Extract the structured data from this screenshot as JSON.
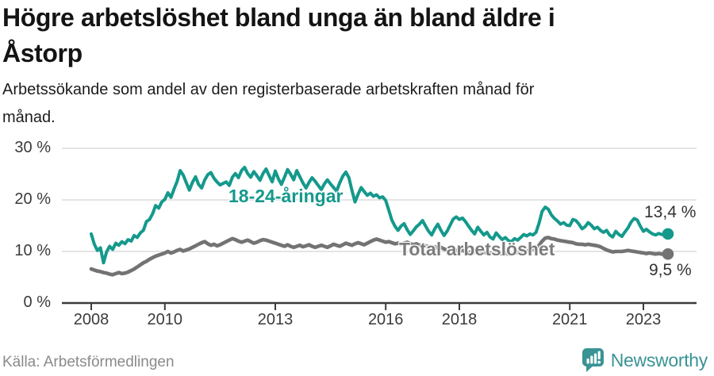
{
  "header": {
    "title_line1": "Högre arbetslöshet bland unga än bland äldre i",
    "title_line2": "Åstorp",
    "subtitle_line1": "Arbetssökande som andel av den registerbaserade arbetskraften månad för",
    "subtitle_line2": "månad."
  },
  "footer": {
    "source": "Källa: Arbetsförmedlingen",
    "brand": "Newsworthy"
  },
  "colors": {
    "youth_line": "#14998c",
    "total_line": "#737373",
    "total_label": "#7c7c7c",
    "grid": "#dcdcdc",
    "axis": "#3b3b3b",
    "text": "#1a1a1a",
    "source_text": "#8a8a8a",
    "brand_teal": "#3a9394"
  },
  "chart_data": {
    "type": "line",
    "title": "Högre arbetslöshet bland unga än bland äldre i Åstorp",
    "subtitle": "Arbetssökande som andel av den registerbaserade arbetskraften månad för månad.",
    "x_start": "2008-01",
    "x_interval": "monthly",
    "x_ticks": [
      "2008",
      "2010",
      "2013",
      "2016",
      "2018",
      "2021",
      "2023"
    ],
    "y_ticks": [
      {
        "value": 0,
        "label": "0 %"
      },
      {
        "value": 10,
        "label": "10 %"
      },
      {
        "value": 20,
        "label": "20 %"
      },
      {
        "value": 30,
        "label": "30 %"
      }
    ],
    "ylim": [
      0,
      31
    ],
    "grid": true,
    "series": [
      {
        "name": "18-24-åringar",
        "color": "#14998c",
        "line_width": 4,
        "end_label": "13,4 %",
        "end_value": 13.4,
        "values": [
          13.4,
          11.4,
          10.2,
          10.7,
          7.8,
          9.9,
          11.0,
          10.4,
          11.6,
          11.2,
          11.9,
          11.5,
          12.3,
          12.0,
          13.1,
          12.7,
          13.6,
          14.1,
          15.8,
          16.2,
          17.3,
          18.9,
          18.4,
          19.6,
          20.1,
          21.4,
          20.5,
          22.1,
          23.6,
          25.7,
          24.8,
          23.3,
          21.9,
          23.4,
          24.5,
          23.0,
          22.3,
          23.9,
          24.9,
          25.3,
          24.2,
          23.5,
          22.9,
          23.2,
          23.5,
          22.8,
          24.4,
          25.1,
          24.3,
          25.7,
          26.3,
          25.1,
          24.4,
          25.5,
          24.7,
          23.8,
          25.1,
          26.0,
          24.7,
          23.5,
          25.6,
          24.1,
          23.0,
          24.4,
          25.9,
          25.0,
          23.9,
          25.7,
          24.5,
          23.3,
          22.3,
          23.4,
          24.3,
          23.6,
          22.8,
          22.0,
          23.1,
          23.9,
          23.1,
          22.4,
          21.7,
          23.3,
          24.6,
          25.4,
          24.3,
          21.8,
          19.6,
          21.1,
          22.4,
          21.6,
          20.9,
          21.3,
          20.7,
          21.0,
          20.4,
          20.6,
          19.9,
          18.0,
          16.1,
          14.9,
          14.1,
          14.9,
          15.4,
          14.2,
          13.3,
          14.0,
          14.8,
          15.3,
          16.0,
          14.9,
          13.9,
          13.2,
          14.4,
          15.3,
          14.1,
          13.1,
          13.9,
          15.1,
          16.3,
          16.7,
          16.2,
          16.5,
          15.8,
          14.9,
          14.1,
          13.4,
          14.7,
          13.9,
          13.2,
          13.7,
          12.8,
          12.4,
          13.6,
          12.9,
          12.3,
          12.7,
          12.1,
          11.9,
          12.5,
          12.2,
          12.7,
          13.3,
          13.0,
          13.4,
          13.2,
          13.7,
          15.5,
          17.8,
          18.6,
          18.2,
          17.1,
          16.4,
          15.9,
          15.3,
          15.6,
          15.1,
          15.0,
          16.2,
          16.0,
          15.3,
          14.4,
          14.8,
          15.6,
          15.1,
          14.4,
          14.7,
          14.1,
          13.7,
          14.1,
          13.2,
          12.8,
          13.9,
          13.3,
          12.9,
          13.8,
          14.6,
          15.7,
          16.4,
          16.1,
          14.9,
          13.9,
          14.3,
          13.8,
          13.4,
          13.2,
          13.5,
          13.3,
          13.3,
          13.4
        ]
      },
      {
        "name": "Total arbetslöshet",
        "color": "#737373",
        "line_width": 4.6,
        "end_label": "9,5 %",
        "end_value": 9.5,
        "values": [
          6.6,
          6.4,
          6.2,
          6.1,
          5.9,
          5.8,
          5.6,
          5.5,
          5.7,
          5.9,
          5.7,
          5.8,
          6.0,
          6.3,
          6.6,
          7.0,
          7.4,
          7.8,
          8.1,
          8.5,
          8.8,
          9.1,
          9.3,
          9.5,
          9.7,
          10.0,
          9.7,
          9.9,
          10.2,
          10.4,
          10.1,
          10.3,
          10.5,
          10.8,
          11.1,
          11.4,
          11.7,
          11.9,
          11.5,
          11.2,
          11.4,
          11.1,
          11.3,
          11.6,
          11.9,
          12.2,
          12.5,
          12.3,
          12.0,
          11.8,
          12.0,
          12.2,
          11.9,
          11.6,
          11.8,
          12.1,
          12.3,
          12.2,
          12.0,
          11.8,
          11.6,
          11.4,
          11.2,
          11.0,
          11.3,
          11.0,
          10.8,
          11.0,
          11.2,
          10.9,
          11.1,
          11.3,
          11.0,
          10.8,
          11.0,
          11.2,
          11.0,
          10.8,
          11.1,
          11.4,
          11.2,
          11.0,
          11.3,
          11.6,
          11.4,
          11.2,
          11.5,
          11.7,
          11.5,
          11.3,
          11.6,
          11.9,
          12.2,
          12.4,
          12.2,
          12.0,
          11.8,
          11.9,
          11.7,
          11.5,
          11.6,
          11.4,
          11.6,
          11.8,
          11.5,
          11.3,
          11.5,
          11.2,
          11.0,
          11.1,
          10.9,
          10.7,
          10.9,
          10.6,
          10.8,
          10.5,
          10.3,
          10.5,
          10.4,
          10.2,
          10.0,
          10.2,
          10.0,
          9.8,
          10.0,
          9.8,
          10.1,
          9.9,
          9.7,
          9.9,
          9.7,
          9.6,
          9.8,
          9.6,
          9.5,
          9.7,
          9.5,
          9.4,
          9.6,
          9.8,
          9.7,
          9.9,
          10.1,
          10.3,
          10.4,
          10.6,
          11.2,
          12.0,
          12.6,
          12.7,
          12.5,
          12.4,
          12.2,
          12.1,
          12.0,
          11.9,
          11.8,
          11.7,
          11.5,
          11.4,
          11.4,
          11.3,
          11.4,
          11.3,
          11.2,
          11.1,
          10.9,
          10.6,
          10.3,
          10.1,
          9.9,
          10.0,
          10.0,
          10.0,
          10.1,
          10.2,
          10.1,
          10.0,
          9.9,
          9.8,
          9.7,
          9.6,
          9.7,
          9.6,
          9.5,
          9.6,
          9.5,
          9.5,
          9.5
        ]
      }
    ]
  }
}
